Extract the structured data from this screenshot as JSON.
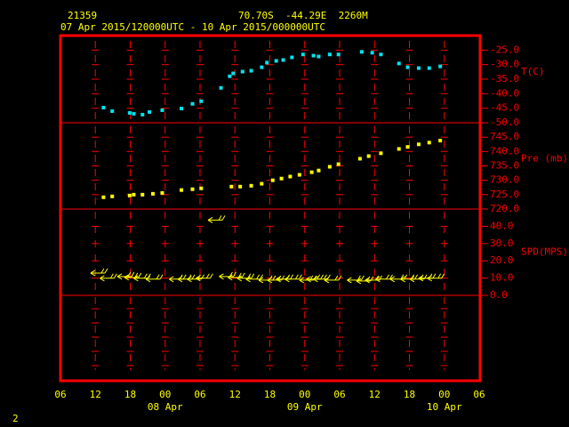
{
  "header": {
    "station": "21359",
    "location": "70.70S  -44.29E  2260M",
    "period": "07 Apr 2015/120000UTC - 10 Apr 2015/000000UTC"
  },
  "page_number": "2",
  "x_axis": {
    "xlim": [
      0,
      72
    ],
    "xticks": [
      {
        "value": 0,
        "label": "06"
      },
      {
        "value": 6,
        "label": "12"
      },
      {
        "value": 12,
        "label": "18"
      },
      {
        "value": 18,
        "label": "00"
      },
      {
        "value": 24,
        "label": "06"
      },
      {
        "value": 30,
        "label": "12"
      },
      {
        "value": 36,
        "label": "18"
      },
      {
        "value": 42,
        "label": "00"
      },
      {
        "value": 48,
        "label": "06"
      },
      {
        "value": 54,
        "label": "12"
      },
      {
        "value": 60,
        "label": "18"
      },
      {
        "value": 66,
        "label": "00"
      },
      {
        "value": 72,
        "label": "06"
      }
    ],
    "day_ticks": [
      {
        "value": 18,
        "label": "08 Apr"
      },
      {
        "value": 42,
        "label": "09 Apr"
      },
      {
        "value": 66,
        "label": "10 Apr"
      }
    ]
  },
  "chart_data": [
    {
      "type": "scatter",
      "ylabel": "T(C)",
      "color": "#00e5ee",
      "ylim": [
        -50,
        -20
      ],
      "yticks": [
        {
          "value": -25,
          "label": "-25.0"
        },
        {
          "value": -30,
          "label": "-30.0"
        },
        {
          "value": -35,
          "label": "-35.0"
        },
        {
          "value": -40,
          "label": "-40.0"
        },
        {
          "value": -45,
          "label": "-45.0"
        },
        {
          "value": -50,
          "label": "-50.0"
        }
      ],
      "x": [
        7.4,
        8.9,
        11.9,
        12.6,
        14.1,
        15.3,
        17.5,
        20.8,
        22.7,
        24.2,
        27.6,
        29.1,
        29.7,
        31.3,
        32.8,
        34.6,
        35.5,
        37.1,
        38.3,
        39.8,
        41.7,
        43.5,
        44.4,
        46.3,
        47.8,
        51.8,
        53.6,
        55.1,
        58.2,
        59.7,
        61.6,
        63.4,
        65.3
      ],
      "values": [
        -44.8,
        -46,
        -46.6,
        -46.9,
        -47.2,
        -46.3,
        -45.7,
        -45.1,
        -43.5,
        -42.6,
        -38,
        -34,
        -33,
        -32.4,
        -32.1,
        -30.9,
        -29.3,
        -28.7,
        -28.4,
        -27.5,
        -26.5,
        -26.9,
        -27.2,
        -26.5,
        -26.5,
        -25.6,
        -25.9,
        -26.5,
        -29.6,
        -30.9,
        -31.2,
        -31.2,
        -30.6
      ]
    },
    {
      "type": "scatter",
      "ylabel": "Pre (mb)",
      "color": "#ffff00",
      "ylim": [
        720,
        750
      ],
      "yticks": [
        {
          "value": 745,
          "label": "745.0"
        },
        {
          "value": 740,
          "label": "740.0"
        },
        {
          "value": 735,
          "label": "735.0"
        },
        {
          "value": 730,
          "label": "730.0"
        },
        {
          "value": 725,
          "label": "725.0"
        },
        {
          "value": 720,
          "label": "720.0"
        }
      ],
      "x": [
        7.4,
        8.9,
        11.9,
        12.6,
        14.1,
        15.9,
        17.5,
        20.8,
        22.7,
        24.2,
        29.4,
        30.9,
        32.8,
        34.6,
        36.5,
        38,
        39.5,
        41.1,
        43.2,
        44.4,
        46.3,
        47.8,
        51.5,
        53,
        55.1,
        58.2,
        59.7,
        61.6,
        63.4,
        65.3
      ],
      "values": [
        724.1,
        724.4,
        724.7,
        725,
        725,
        725.3,
        725.6,
        726.6,
        726.9,
        727.2,
        727.8,
        727.8,
        728.1,
        728.8,
        730,
        730.6,
        731.3,
        731.9,
        732.8,
        733.4,
        734.7,
        735.6,
        737.5,
        738.4,
        739.4,
        740.9,
        741.6,
        742.5,
        743.1,
        743.8
      ]
    },
    {
      "type": "barbs",
      "ylabel": "SPD(MPS)",
      "color": "#ffff00",
      "ylim": [
        0,
        50
      ],
      "yticks": [
        {
          "value": 40,
          "label": "40.0"
        },
        {
          "value": 30,
          "label": "30.0"
        },
        {
          "value": 20,
          "label": "20.0"
        },
        {
          "value": 10,
          "label": "10.0"
        },
        {
          "value": 0,
          "label": "0.0"
        }
      ],
      "x": [
        6.1,
        7.7,
        10.7,
        11.9,
        13.5,
        15.6,
        19.6,
        21.1,
        22.7,
        24.2,
        26.3,
        28.2,
        29.7,
        31.3,
        32.8,
        35,
        36.5,
        38,
        39.5,
        42,
        43.2,
        44.4,
        46.3,
        50.2,
        51.8,
        53.3,
        55.1,
        57.6,
        59.4,
        61,
        62.5,
        64
      ],
      "values": [
        12.9,
        9.9,
        10.9,
        10.4,
        9.9,
        9.4,
        9.4,
        9.4,
        9.4,
        9.9,
        43.6,
        10.9,
        10.4,
        9.9,
        9.4,
        8.8,
        8.8,
        9.4,
        9.4,
        8.8,
        9.4,
        9.4,
        8.8,
        8.8,
        8.3,
        8.8,
        9.4,
        9.4,
        9.4,
        9.4,
        9.9,
        9.9
      ]
    }
  ]
}
